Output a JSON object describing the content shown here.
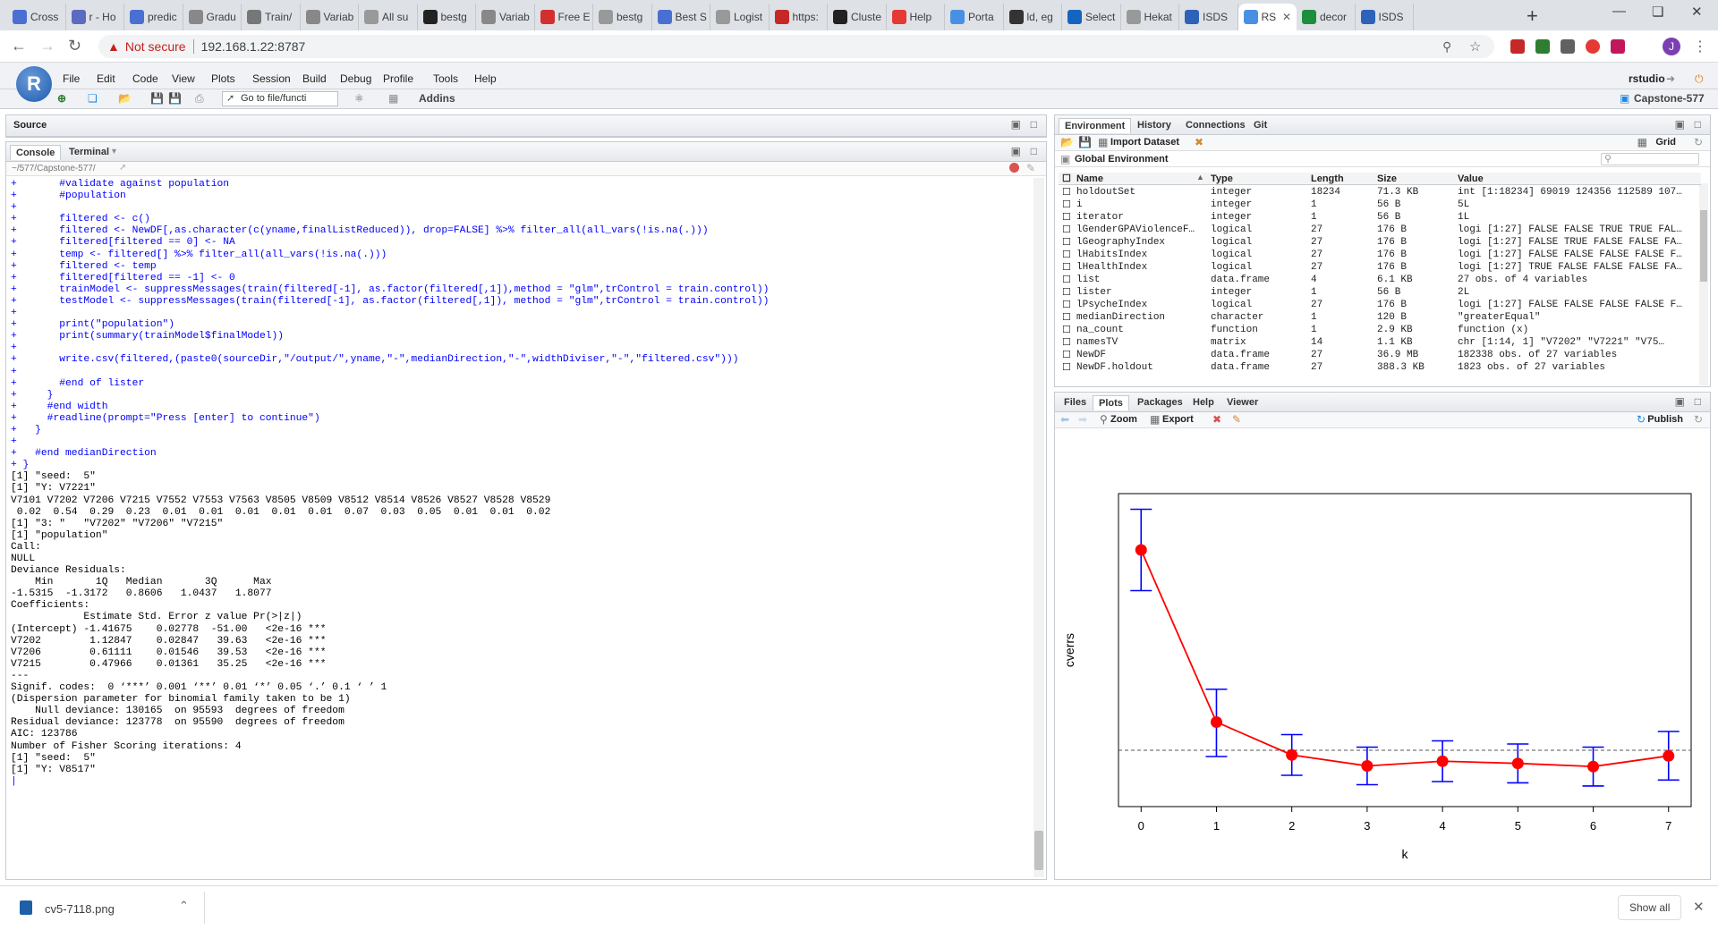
{
  "browser": {
    "tabs": [
      {
        "label": "Cross",
        "color": "#4a6fd3"
      },
      {
        "label": "r - Ho",
        "color": "#5c6bc0"
      },
      {
        "label": "predic",
        "color": "#4a6fd3"
      },
      {
        "label": "Gradu",
        "color": "#888888"
      },
      {
        "label": "Train/",
        "color": "#777777"
      },
      {
        "label": "Variab",
        "color": "#888888"
      },
      {
        "label": "All su",
        "color": "#999999"
      },
      {
        "label": "bestg",
        "color": "#222222"
      },
      {
        "label": "Variab",
        "color": "#888888"
      },
      {
        "label": "Free E",
        "color": "#d32f2f"
      },
      {
        "label": "bestg",
        "color": "#999999"
      },
      {
        "label": "Best S",
        "color": "#4a6fd3"
      },
      {
        "label": "Logist",
        "color": "#999999"
      },
      {
        "label": "https:",
        "color": "#c62828"
      },
      {
        "label": "Cluste",
        "color": "#222222"
      },
      {
        "label": "Help",
        "color": "#e53935"
      },
      {
        "label": "Porta",
        "color": "#4a90e2"
      },
      {
        "label": "ld, eg",
        "color": "#333333"
      },
      {
        "label": "Select",
        "color": "#1565c0"
      },
      {
        "label": "Hekat",
        "color": "#999999"
      },
      {
        "label": "ISDS",
        "color": "#2d62b8"
      },
      {
        "label": "RS",
        "color": "#4a90e2"
      },
      {
        "label": "decor",
        "color": "#1e8e3e"
      },
      {
        "label": "ISDS",
        "color": "#2d62b8"
      }
    ],
    "active_tab_index": 21,
    "security_label": "Not secure",
    "url": "192.168.1.22:8787"
  },
  "rstudio": {
    "menu": [
      "File",
      "Edit",
      "Code",
      "View",
      "Plots",
      "Session",
      "Build",
      "Debug",
      "Profile",
      "Tools",
      "Help"
    ],
    "user": "rstudio",
    "goto_placeholder": "Go to file/functi",
    "addins_label": "Addins",
    "project_label": "Capstone-577",
    "source_label": "Source",
    "console_tabs": [
      "Console",
      "Terminal"
    ],
    "console_path": "~/577/Capstone-577/",
    "console_lines": [
      {
        "t": "+       #validate against population",
        "in": true
      },
      {
        "t": "+       #population",
        "in": true
      },
      {
        "t": "+",
        "in": true
      },
      {
        "t": "+       filtered <- c()",
        "in": true
      },
      {
        "t": "+       filtered <- NewDF[,as.character(c(yname,finalListReduced)), drop=FALSE] %>% filter_all(all_vars(!is.na(.)))",
        "in": true
      },
      {
        "t": "+       filtered[filtered == 0] <- NA",
        "in": true
      },
      {
        "t": "+       temp <- filtered[] %>% filter_all(all_vars(!is.na(.)))",
        "in": true
      },
      {
        "t": "+       filtered <- temp",
        "in": true
      },
      {
        "t": "+       filtered[filtered == -1] <- 0",
        "in": true
      },
      {
        "t": "+       trainModel <- suppressMessages(train(filtered[-1], as.factor(filtered[,1]),method = \"glm\",trControl = train.control))",
        "in": true
      },
      {
        "t": "+       testModel <- suppressMessages(train(filtered[-1], as.factor(filtered[,1]), method = \"glm\",trControl = train.control))",
        "in": true
      },
      {
        "t": "+",
        "in": true
      },
      {
        "t": "+       print(\"population\")",
        "in": true
      },
      {
        "t": "+       print(summary(trainModel$finalModel))",
        "in": true
      },
      {
        "t": "+",
        "in": true
      },
      {
        "t": "+       write.csv(filtered,(paste0(sourceDir,\"/output/\",yname,\"-\",medianDirection,\"-\",widthDiviser,\"-\",\"filtered.csv\")))",
        "in": true
      },
      {
        "t": "+",
        "in": true
      },
      {
        "t": "+       #end of lister",
        "in": true
      },
      {
        "t": "+     }",
        "in": true
      },
      {
        "t": "+     #end width",
        "in": true
      },
      {
        "t": "+     #readline(prompt=\"Press [enter] to continue\")",
        "in": true
      },
      {
        "t": "+   }",
        "in": true
      },
      {
        "t": "+",
        "in": true
      },
      {
        "t": "+   #end medianDirection",
        "in": true
      },
      {
        "t": "+ }",
        "in": true
      },
      {
        "t": "[1] \"seed:  5\"",
        "in": false
      },
      {
        "t": "[1] \"Y: V7221\"",
        "in": false
      },
      {
        "t": "",
        "in": false
      },
      {
        "t": "V7101 V7202 V7206 V7215 V7552 V7553 V7563 V8505 V8509 V8512 V8514 V8526 V8527 V8528 V8529",
        "in": false
      },
      {
        "t": " 0.02  0.54  0.29  0.23  0.01  0.01  0.01  0.01  0.01  0.07  0.03  0.05  0.01  0.01  0.02",
        "in": false
      },
      {
        "t": "[1] \"3: \"   \"V7202\" \"V7206\" \"V7215\"",
        "in": false
      },
      {
        "t": "[1] \"population\"",
        "in": false
      },
      {
        "t": "",
        "in": false
      },
      {
        "t": "Call:",
        "in": false
      },
      {
        "t": "NULL",
        "in": false
      },
      {
        "t": "",
        "in": false
      },
      {
        "t": "Deviance Residuals:",
        "in": false
      },
      {
        "t": "    Min       1Q   Median       3Q      Max",
        "in": false
      },
      {
        "t": "-1.5315  -1.3172   0.8606   1.0437   1.8077",
        "in": false
      },
      {
        "t": "",
        "in": false
      },
      {
        "t": "Coefficients:",
        "in": false
      },
      {
        "t": "            Estimate Std. Error z value Pr(>|z|)",
        "in": false
      },
      {
        "t": "(Intercept) -1.41675    0.02778  -51.00   <2e-16 ***",
        "in": false
      },
      {
        "t": "V7202        1.12847    0.02847   39.63   <2e-16 ***",
        "in": false
      },
      {
        "t": "V7206        0.61111    0.01546   39.53   <2e-16 ***",
        "in": false
      },
      {
        "t": "V7215        0.47966    0.01361   35.25   <2e-16 ***",
        "in": false
      },
      {
        "t": "---",
        "in": false
      },
      {
        "t": "Signif. codes:  0 ‘***’ 0.001 ‘**’ 0.01 ‘*’ 0.05 ‘.’ 0.1 ‘ ’ 1",
        "in": false
      },
      {
        "t": "",
        "in": false
      },
      {
        "t": "(Dispersion parameter for binomial family taken to be 1)",
        "in": false
      },
      {
        "t": "",
        "in": false
      },
      {
        "t": "    Null deviance: 130165  on 95593  degrees of freedom",
        "in": false
      },
      {
        "t": "Residual deviance: 123778  on 95590  degrees of freedom",
        "in": false
      },
      {
        "t": "AIC: 123786",
        "in": false
      },
      {
        "t": "",
        "in": false
      },
      {
        "t": "Number of Fisher Scoring iterations: 4",
        "in": false
      },
      {
        "t": "",
        "in": false
      },
      {
        "t": "[1] \"seed:  5\"",
        "in": false
      },
      {
        "t": "[1] \"Y: V8517\"",
        "in": false
      }
    ],
    "env_tabs": [
      "Environment",
      "History",
      "Connections",
      "Git"
    ],
    "import_dataset": "Import Dataset",
    "grid_label": "Grid",
    "global_env": "Global Environment",
    "env_columns": [
      "Name",
      "Type",
      "Length",
      "Size",
      "Value"
    ],
    "env_rows": [
      [
        "holdoutSet",
        "integer",
        "18234",
        "71.3 KB",
        "int [1:18234] 69019 124356 112589 107…"
      ],
      [
        "i",
        "integer",
        "1",
        "56 B",
        "5L"
      ],
      [
        "iterator",
        "integer",
        "1",
        "56 B",
        "1L"
      ],
      [
        "lGenderGPAViolenceF…",
        "logical",
        "27",
        "176 B",
        "logi [1:27] FALSE FALSE TRUE TRUE FAL…"
      ],
      [
        "lGeographyIndex",
        "logical",
        "27",
        "176 B",
        "logi [1:27] FALSE TRUE FALSE FALSE FA…"
      ],
      [
        "lHabitsIndex",
        "logical",
        "27",
        "176 B",
        "logi [1:27] FALSE FALSE FALSE FALSE F…"
      ],
      [
        "lHealthIndex",
        "logical",
        "27",
        "176 B",
        "logi [1:27] TRUE FALSE FALSE FALSE FA…"
      ],
      [
        "list",
        "data.frame",
        "4",
        "6.1 KB",
        "27 obs. of 4 variables"
      ],
      [
        "lister",
        "integer",
        "1",
        "56 B",
        "2L"
      ],
      [
        "lPsycheIndex",
        "logical",
        "27",
        "176 B",
        "logi [1:27] FALSE FALSE FALSE FALSE F…"
      ],
      [
        "medianDirection",
        "character",
        "1",
        "120 B",
        "\"greaterEqual\""
      ],
      [
        "na_count",
        "function",
        "1",
        "2.9 KB",
        "function (x)"
      ],
      [
        "namesTV",
        "matrix",
        "14",
        "1.1 KB",
        "chr [1:14, 1] \"V7202\" \"V7221\" \"V75…"
      ],
      [
        "NewDF",
        "data.frame",
        "27",
        "36.9 MB",
        "182338 obs. of 27 variables"
      ],
      [
        "NewDF.holdout",
        "data.frame",
        "27",
        "388.3 KB",
        "1823 obs. of 27 variables"
      ]
    ],
    "files_tabs": [
      "Files",
      "Plots",
      "Packages",
      "Help",
      "Viewer"
    ],
    "zoom_label": "Zoom",
    "export_label": "Export",
    "publish_label": "Publish"
  },
  "chart_data": {
    "type": "line",
    "title": "",
    "xlabel": "k",
    "ylabel": "cverrs",
    "x": [
      0,
      1,
      2,
      3,
      4,
      5,
      6,
      7
    ],
    "series": [
      {
        "values": [
          0.82,
          0.27,
          0.165,
          0.13,
          0.145,
          0.138,
          0.128,
          0.162
        ],
        "color": "#ff0000"
      }
    ],
    "error_bars": {
      "upper": [
        0.95,
        0.375,
        0.23,
        0.19,
        0.21,
        0.2,
        0.19,
        0.24
      ],
      "lower": [
        0.69,
        0.16,
        0.1,
        0.07,
        0.08,
        0.076,
        0.066,
        0.085
      ],
      "color": "#0000ff"
    },
    "reference_line": {
      "y": 0.18,
      "style": "dashed",
      "color": "#555555"
    },
    "xlim": [
      -0.3,
      7.3
    ],
    "ylim": [
      0.0,
      1.0
    ],
    "x_ticks": [
      "0",
      "1",
      "2",
      "3",
      "4",
      "5",
      "6",
      "7"
    ],
    "show_y_ticks": false,
    "grid": false
  },
  "downloads": {
    "file": "cv5-7118.png",
    "show_all": "Show all"
  }
}
